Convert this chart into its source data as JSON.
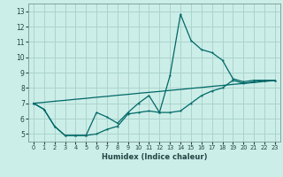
{
  "xlabel": "Humidex (Indice chaleur)",
  "bg_color": "#cceee8",
  "grid_color": "#aad4cc",
  "line_color": "#006868",
  "xlim": [
    -0.5,
    23.5
  ],
  "ylim": [
    4.5,
    13.5
  ],
  "xticks": [
    0,
    1,
    2,
    3,
    4,
    5,
    6,
    7,
    8,
    9,
    10,
    11,
    12,
    13,
    14,
    15,
    16,
    17,
    18,
    19,
    20,
    21,
    22,
    23
  ],
  "yticks": [
    5,
    6,
    7,
    8,
    9,
    10,
    11,
    12,
    13
  ],
  "line1_x": [
    0,
    1,
    2,
    3,
    4,
    5,
    6,
    7,
    8,
    9,
    10,
    11,
    12,
    13,
    14,
    15,
    16,
    17,
    18,
    19,
    20,
    21,
    22,
    23
  ],
  "line1_y": [
    7.0,
    6.6,
    5.5,
    4.9,
    4.9,
    4.9,
    6.4,
    6.1,
    5.7,
    6.4,
    7.0,
    7.5,
    6.4,
    8.8,
    12.8,
    11.1,
    10.5,
    10.3,
    9.8,
    8.6,
    8.4,
    8.5,
    8.5,
    8.5
  ],
  "line2_x": [
    0,
    1,
    2,
    3,
    4,
    5,
    6,
    7,
    8,
    9,
    10,
    11,
    12,
    13,
    14,
    15,
    16,
    17,
    18,
    19,
    20,
    21,
    22,
    23
  ],
  "line2_y": [
    7.0,
    6.6,
    5.5,
    4.9,
    4.9,
    4.9,
    5.0,
    5.3,
    5.5,
    6.3,
    6.4,
    6.5,
    6.4,
    6.4,
    6.5,
    7.0,
    7.5,
    7.8,
    8.0,
    8.5,
    8.3,
    8.4,
    8.5,
    8.5
  ],
  "line3_x": [
    0,
    1,
    2,
    3,
    4,
    5,
    6,
    7,
    8,
    9,
    10,
    11,
    12,
    13,
    14,
    15,
    16,
    17,
    18,
    19,
    20,
    21,
    22,
    23
  ],
  "line3_y": [
    7.0,
    7.06,
    7.13,
    7.19,
    7.26,
    7.32,
    7.39,
    7.45,
    7.52,
    7.58,
    7.65,
    7.71,
    7.77,
    7.84,
    7.9,
    7.97,
    8.03,
    8.1,
    8.16,
    8.23,
    8.29,
    8.35,
    8.42,
    8.48
  ]
}
